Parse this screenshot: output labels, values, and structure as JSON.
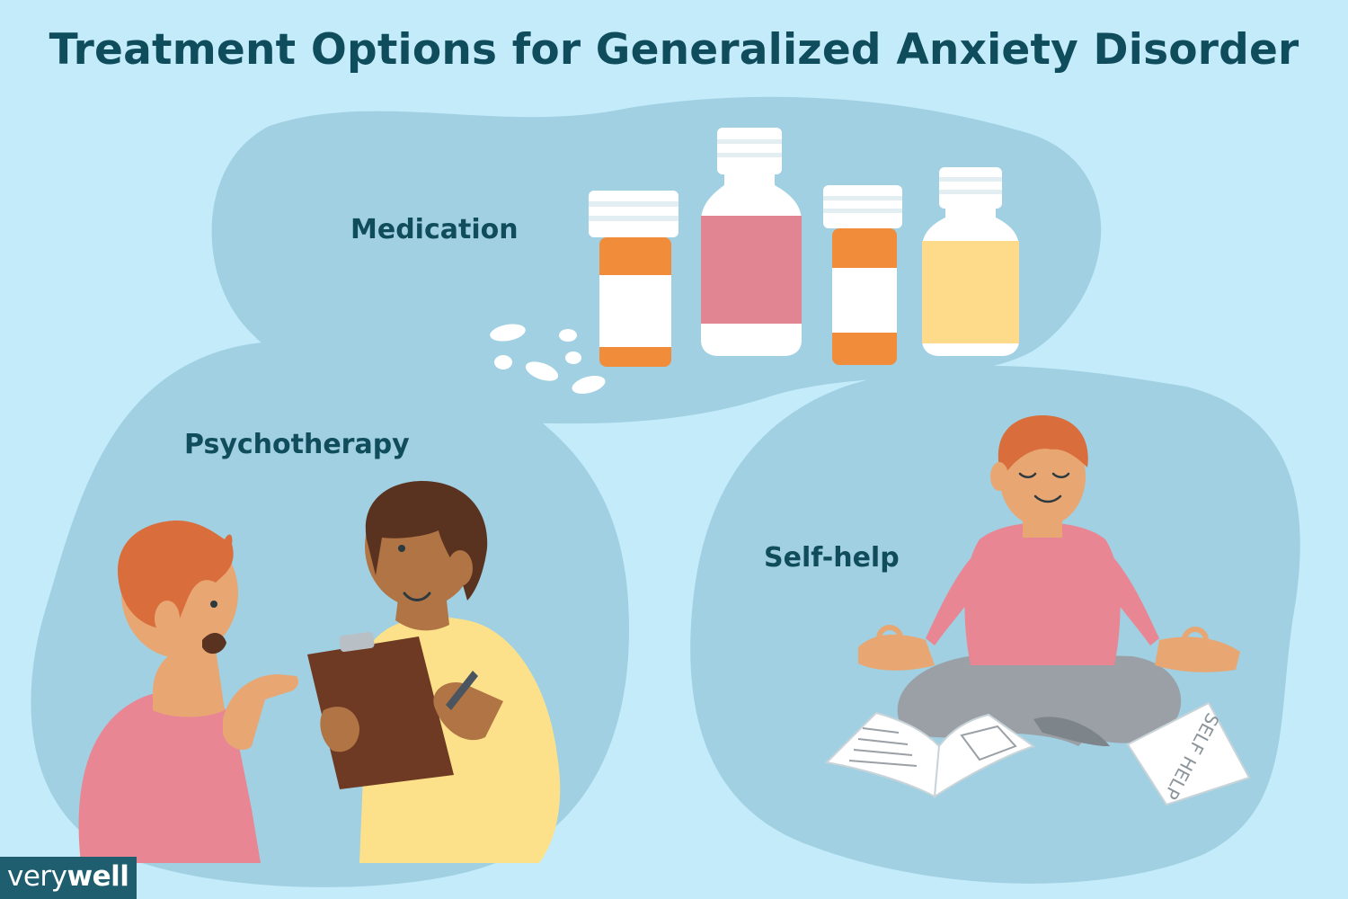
{
  "title": "Treatment Options for Generalized Anxiety Disorder",
  "sections": {
    "medication": "Medication",
    "psychotherapy": "Psychotherapy",
    "self_help": "Self-help"
  },
  "book_cover_text": "SELF HELP",
  "brand": {
    "part1": "very",
    "part2": "well"
  },
  "colors": {
    "background": "#c3ebfa",
    "blob": "#a0d0e2",
    "text": "#0f4c5c",
    "orange": "#f08c3a",
    "pink": "#e98693",
    "yellow": "#fde18a",
    "skin_light": "#e8a673",
    "skin_dark": "#b07445",
    "hair_red": "#d96e3c",
    "grey_pants": "#9aa0a6"
  }
}
